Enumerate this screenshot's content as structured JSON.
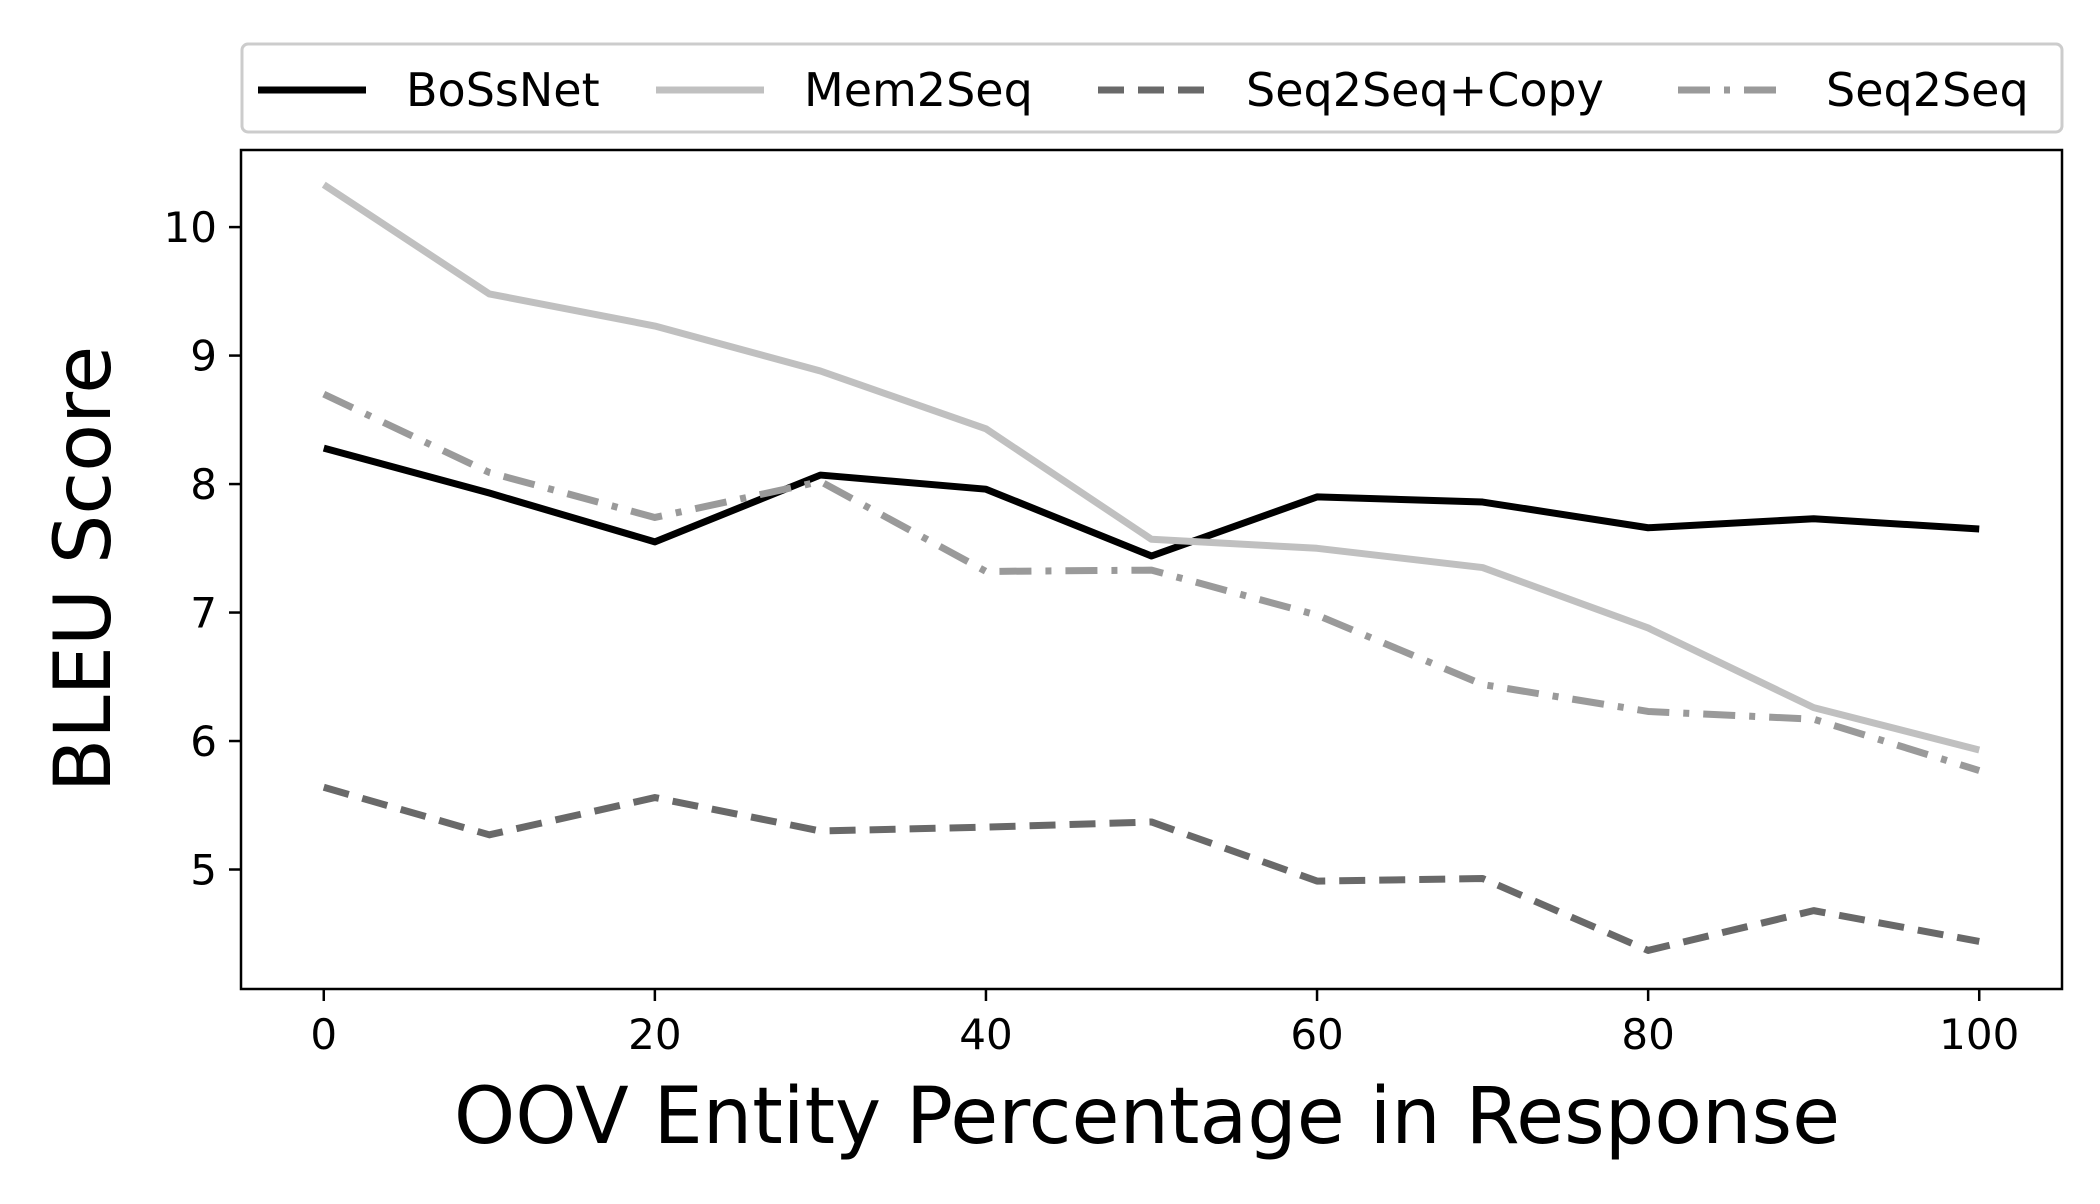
{
  "chart_data": {
    "type": "line",
    "title": "",
    "xlabel": "OOV Entity Percentage in Response",
    "ylabel": "BLEU Score",
    "xlim": [
      -5,
      105
    ],
    "ylim": [
      4.07,
      10.6
    ],
    "xticks": [
      0,
      20,
      40,
      60,
      80,
      100
    ],
    "yticks": [
      5,
      6,
      7,
      8,
      9,
      10
    ],
    "grid": false,
    "legend_position": "top-outside",
    "x": [
      0,
      10,
      20,
      30,
      40,
      50,
      60,
      70,
      80,
      90,
      100
    ],
    "series": [
      {
        "name": "BoSsNet",
        "color": "#000000",
        "dash": "solid",
        "values": [
          8.28,
          7.93,
          7.55,
          8.07,
          7.96,
          7.44,
          7.9,
          7.86,
          7.66,
          7.73,
          7.65
        ]
      },
      {
        "name": "Mem2Seq",
        "color": "#c0c0c0",
        "dash": "solid",
        "values": [
          10.33,
          9.48,
          9.23,
          8.88,
          8.43,
          7.57,
          7.5,
          7.35,
          6.88,
          6.26,
          5.93
        ]
      },
      {
        "name": "Seq2Seq+Copy",
        "color": "#696969",
        "dash": "dashed",
        "values": [
          5.64,
          5.27,
          5.56,
          5.3,
          5.33,
          5.37,
          4.91,
          4.93,
          4.37,
          4.68,
          4.44
        ]
      },
      {
        "name": "Seq2Seq",
        "color": "#9a9a9a",
        "dash": "dashdot",
        "values": [
          8.7,
          8.09,
          7.74,
          8.02,
          7.32,
          7.33,
          6.98,
          6.44,
          6.23,
          6.17,
          5.77
        ]
      }
    ]
  }
}
